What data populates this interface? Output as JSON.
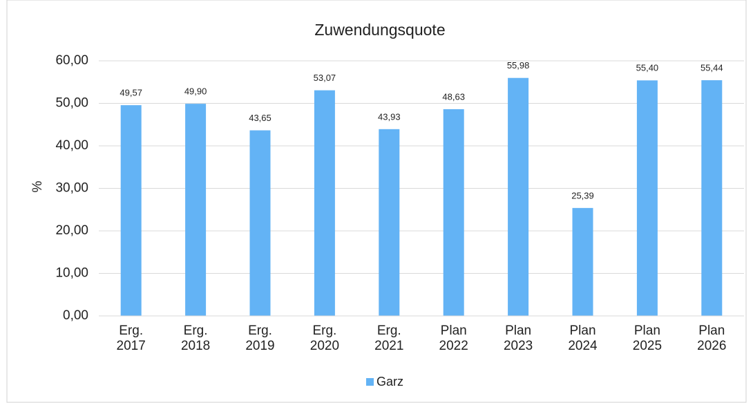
{
  "chart_data": {
    "type": "bar",
    "title": "Zuwendungsquote",
    "y_label": "%",
    "categories": [
      "Erg.\n2017",
      "Erg.\n2018",
      "Erg.\n2019",
      "Erg.\n2020",
      "Erg.\n2021",
      "Plan\n2022",
      "Plan\n2023",
      "Plan\n2024",
      "Plan\n2025",
      "Plan\n2026"
    ],
    "series": [
      {
        "name": "Garz",
        "color": "#63b3f5",
        "values": [
          49.57,
          49.9,
          43.65,
          53.07,
          43.93,
          48.63,
          55.98,
          25.39,
          55.4,
          55.44
        ],
        "value_labels": [
          "49,57",
          "49,90",
          "43,65",
          "53,07",
          "43,93",
          "48,63",
          "55,98",
          "25,39",
          "55,40",
          "55,44"
        ]
      }
    ],
    "ylim": [
      0,
      60
    ],
    "yticks": [
      {
        "value": 0,
        "label": "0,00"
      },
      {
        "value": 10,
        "label": "10,00"
      },
      {
        "value": 20,
        "label": "20,00"
      },
      {
        "value": 30,
        "label": "30,00"
      },
      {
        "value": 40,
        "label": "40,00"
      },
      {
        "value": 50,
        "label": "50,00"
      },
      {
        "value": 60,
        "label": "60,00"
      }
    ],
    "grid": true,
    "legend": "bottom"
  }
}
